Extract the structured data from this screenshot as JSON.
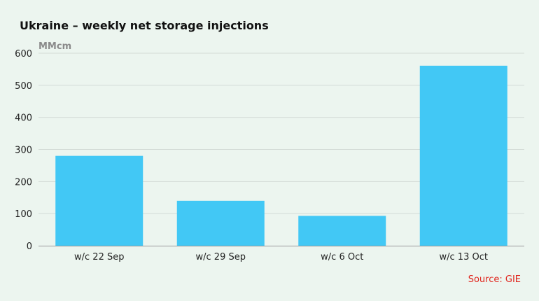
{
  "chart_data": {
    "type": "bar",
    "title": "Ukraine – weekly net storage injections",
    "unit_label": "MMcm",
    "categories": [
      "w/c 22 Sep",
      "w/c 29 Sep",
      "w/c 6 Oct",
      "w/c 13 Oct"
    ],
    "values": [
      280,
      140,
      93,
      561
    ],
    "ylim": [
      0,
      600
    ],
    "yticks": [
      0,
      100,
      200,
      300,
      400,
      500,
      600
    ],
    "grid": true,
    "source": "Source: GIE"
  },
  "colors": {
    "background": "#ecf5ef",
    "bar": "#42c8f5",
    "grid": "#d3dbd6",
    "axis": "#9a9a9a",
    "source": "#e0261e"
  }
}
